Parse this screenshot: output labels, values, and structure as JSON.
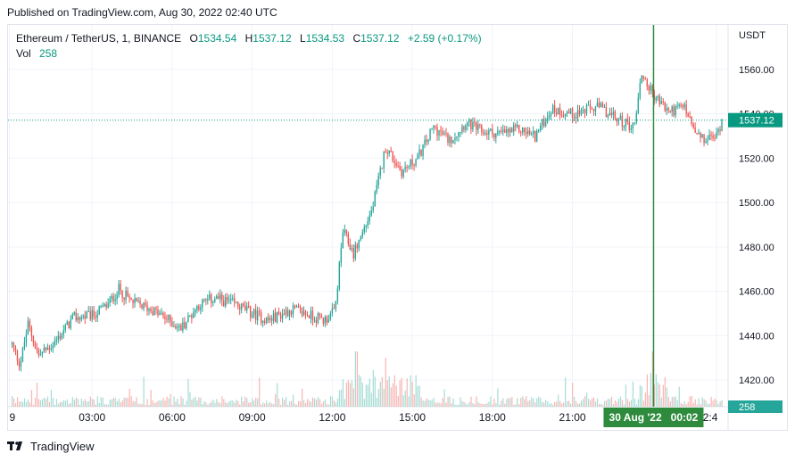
{
  "header": {
    "published": "Published on TradingView.com, Aug 30, 2022 02:40 UTC"
  },
  "legend": {
    "symbol": "Ethereum / TetherUS, 1, BINANCE",
    "o_label": "O",
    "o_value": "1534.54",
    "h_label": "H",
    "h_value": "1537.12",
    "l_label": "L",
    "l_value": "1534.53",
    "c_label": "C",
    "c_value": "1537.12",
    "change": "+2.59 (+0.17%)",
    "vol_label": "Vol",
    "vol_value": "258"
  },
  "footer": {
    "brand": "TradingView"
  },
  "colors": {
    "up": "#26a69a",
    "down": "#ef5350",
    "vol_up": "#a6dcd5",
    "vol_down": "#f8b5b3",
    "price_line": "#089981",
    "crosshair": "#2e8b3d",
    "grid": "#f0f3fa"
  },
  "chart_data": {
    "type": "candlestick",
    "currency": "USDT",
    "y_ticks": [
      "1560.00",
      "1540.00",
      "1520.00",
      "1500.00",
      "1480.00",
      "1460.00",
      "1440.00",
      "1420.00"
    ],
    "y_tick_values": [
      1560,
      1540,
      1520,
      1500,
      1480,
      1460,
      1440,
      1420
    ],
    "ylim": [
      1408,
      1580
    ],
    "x_ticks": [
      "9",
      "03:00",
      "06:00",
      "09:00",
      "12:00",
      "15:00",
      "18:00",
      "21:00",
      "02:4"
    ],
    "x_tick_hours": [
      -0.1,
      3,
      6,
      9,
      12,
      15,
      18,
      21,
      26.4
    ],
    "xlim_hours": [
      -0.15,
      26.8
    ],
    "last_price": 1537.12,
    "last_price_label": "1537.12",
    "last_volume_label": "258",
    "crosshair": {
      "hour": 24.04,
      "label": "30 Aug '22   00:02"
    },
    "price_path": [
      {
        "hour": 0.0,
        "price": 1436
      },
      {
        "hour": 0.3,
        "price": 1427
      },
      {
        "hour": 0.6,
        "price": 1445
      },
      {
        "hour": 1.0,
        "price": 1431
      },
      {
        "hour": 1.6,
        "price": 1437
      },
      {
        "hour": 2.3,
        "price": 1448
      },
      {
        "hour": 3.0,
        "price": 1449
      },
      {
        "hour": 3.6,
        "price": 1454
      },
      {
        "hour": 4.0,
        "price": 1461
      },
      {
        "hour": 4.5,
        "price": 1455
      },
      {
        "hour": 5.2,
        "price": 1452
      },
      {
        "hour": 6.0,
        "price": 1446
      },
      {
        "hour": 6.3,
        "price": 1443
      },
      {
        "hour": 7.0,
        "price": 1454
      },
      {
        "hour": 7.6,
        "price": 1457
      },
      {
        "hour": 8.4,
        "price": 1454
      },
      {
        "hour": 9.0,
        "price": 1450
      },
      {
        "hour": 9.6,
        "price": 1447
      },
      {
        "hour": 10.5,
        "price": 1452
      },
      {
        "hour": 11.2,
        "price": 1449
      },
      {
        "hour": 11.7,
        "price": 1447
      },
      {
        "hour": 12.1,
        "price": 1451
      },
      {
        "hour": 12.4,
        "price": 1487
      },
      {
        "hour": 12.8,
        "price": 1477
      },
      {
        "hour": 13.5,
        "price": 1497
      },
      {
        "hour": 14.0,
        "price": 1525
      },
      {
        "hour": 14.6,
        "price": 1514
      },
      {
        "hour": 15.2,
        "price": 1520
      },
      {
        "hour": 15.8,
        "price": 1534
      },
      {
        "hour": 16.4,
        "price": 1528
      },
      {
        "hour": 17.0,
        "price": 1536
      },
      {
        "hour": 17.6,
        "price": 1532
      },
      {
        "hour": 18.3,
        "price": 1531
      },
      {
        "hour": 19.0,
        "price": 1533
      },
      {
        "hour": 19.6,
        "price": 1530
      },
      {
        "hour": 20.2,
        "price": 1542
      },
      {
        "hour": 21.0,
        "price": 1540
      },
      {
        "hour": 22.0,
        "price": 1543
      },
      {
        "hour": 22.6,
        "price": 1538
      },
      {
        "hour": 23.3,
        "price": 1534
      },
      {
        "hour": 23.6,
        "price": 1558
      },
      {
        "hour": 24.0,
        "price": 1549
      },
      {
        "hour": 24.6,
        "price": 1541
      },
      {
        "hour": 25.2,
        "price": 1543
      },
      {
        "hour": 25.6,
        "price": 1531
      },
      {
        "hour": 25.9,
        "price": 1528
      },
      {
        "hour": 26.4,
        "price": 1530
      },
      {
        "hour": 26.6,
        "price": 1537
      }
    ]
  }
}
